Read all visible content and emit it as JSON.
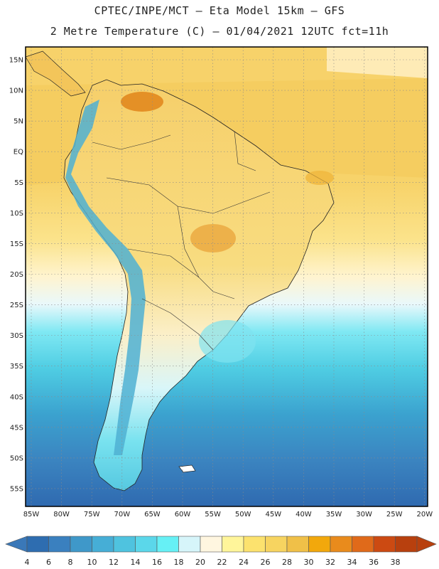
{
  "header": {
    "line1": "CPTEC/INPE/MCT –  Eta Model 15km – GFS",
    "line2": "2 Metre Temperature (C) – 01/04/2021 12UTC fct=11h"
  },
  "map": {
    "lat_labels": [
      "15N",
      "10N",
      "5N",
      "EQ",
      "5S",
      "10S",
      "15S",
      "20S",
      "25S",
      "30S",
      "35S",
      "40S",
      "45S",
      "50S",
      "55S"
    ],
    "lon_labels": [
      "85W",
      "80W",
      "75W",
      "70W",
      "65W",
      "60W",
      "55W",
      "50W",
      "45W",
      "40W",
      "35W",
      "30W",
      "25W",
      "20W"
    ],
    "grid": true
  },
  "colorbar": {
    "labels": [
      "4",
      "6",
      "8",
      "10",
      "12",
      "14",
      "16",
      "18",
      "20",
      "22",
      "24",
      "26",
      "28",
      "30",
      "32",
      "34",
      "36",
      "38"
    ],
    "colors": [
      "#2e6db0",
      "#3a80bf",
      "#3f98c9",
      "#46aed6",
      "#4fc3df",
      "#5bd7ea",
      "#66f0f5",
      "#d6f5fa",
      "#fff6e0",
      "#fff59a",
      "#fce26e",
      "#f7d460",
      "#f0c048",
      "#f2a80c",
      "#e98b1c",
      "#e06a1a",
      "#cc4a12",
      "#b8400e"
    ]
  }
}
